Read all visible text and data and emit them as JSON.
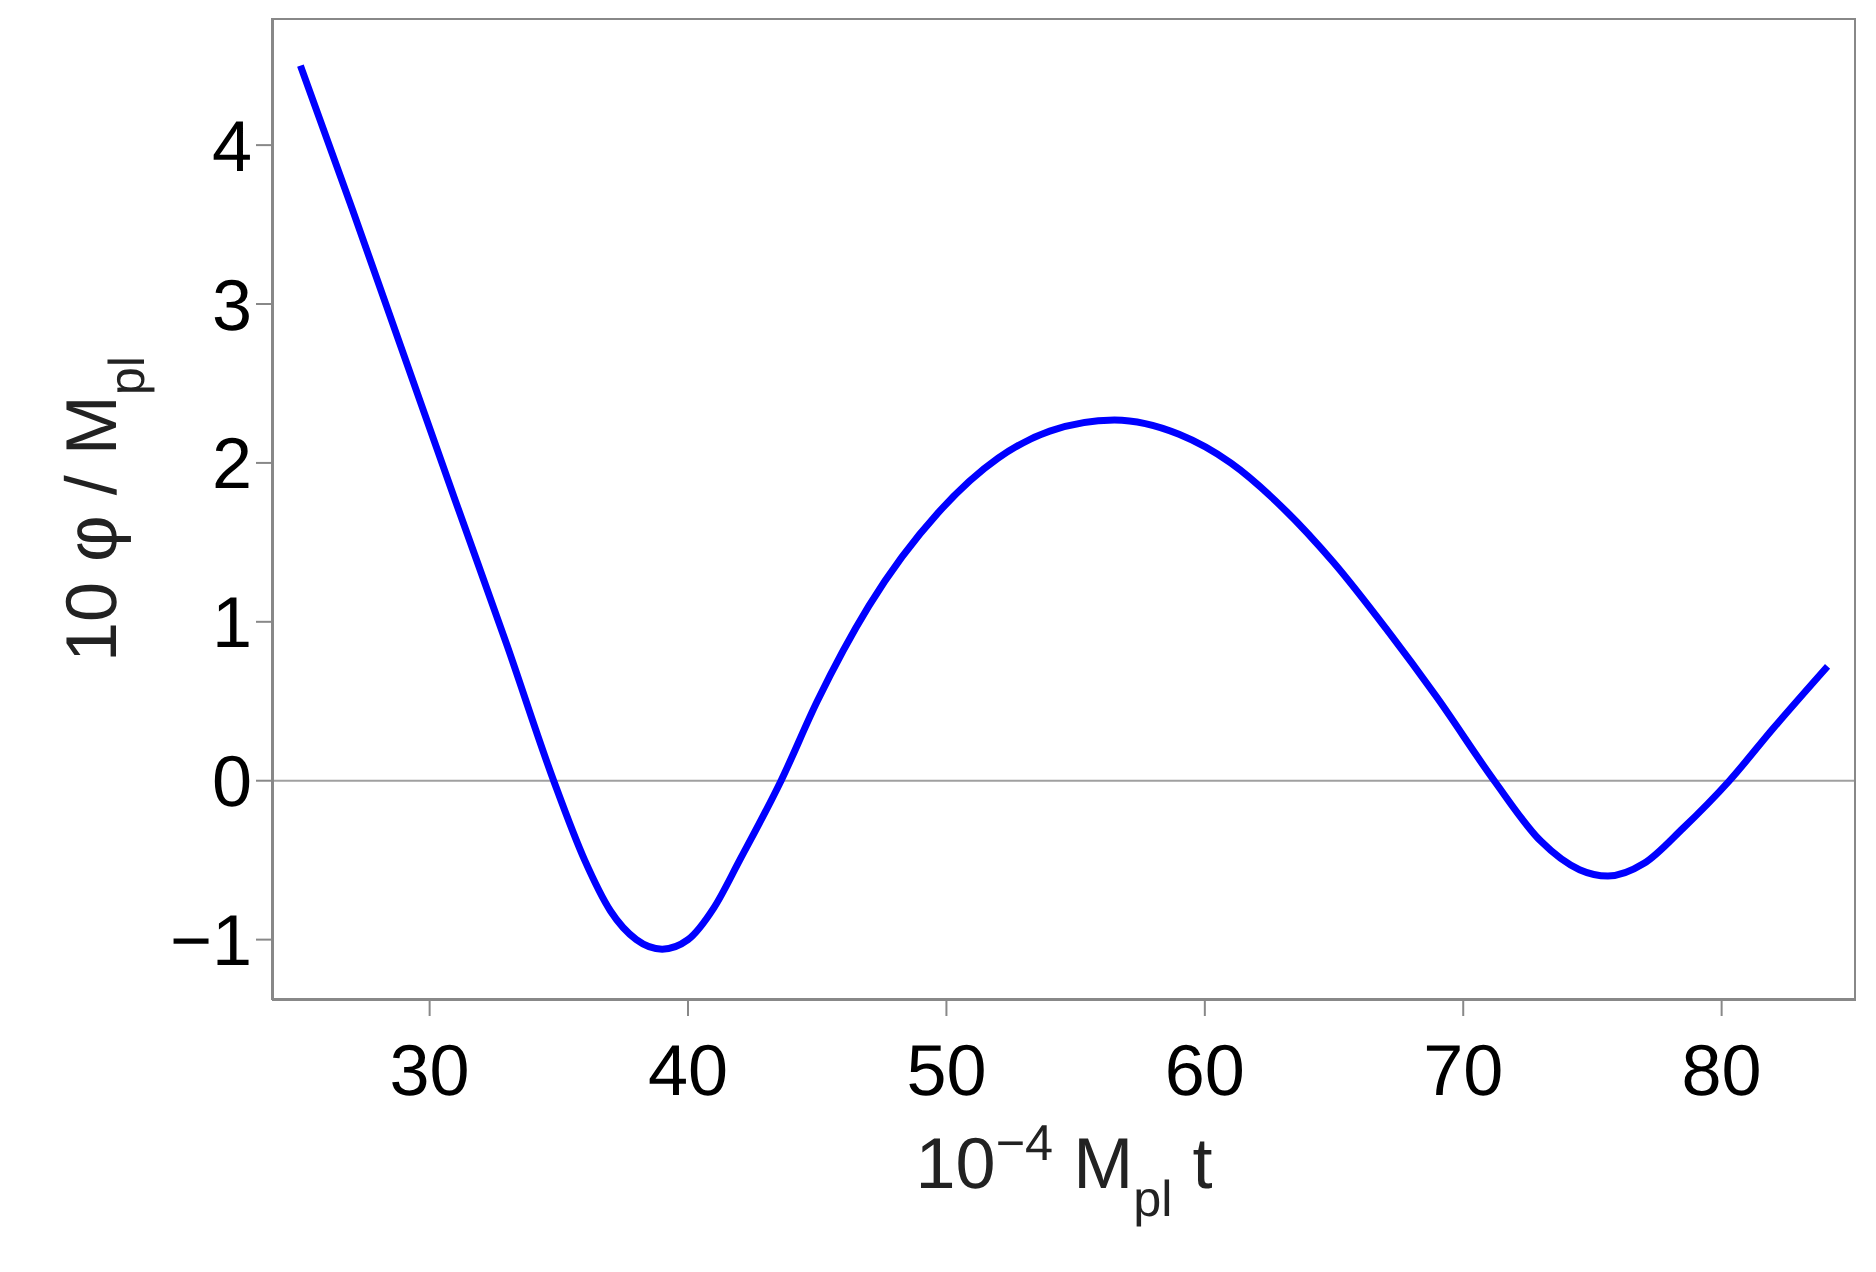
{
  "chart_data": {
    "type": "line",
    "xlabel": "10$^{−4}$ M$_{pl}$ t",
    "ylabel": "10 φ / M$_{pl}$",
    "x": [
      25,
      27,
      29,
      31,
      33,
      34.8,
      36,
      37,
      38,
      39,
      40,
      41,
      42,
      43.6,
      45,
      47,
      49.7,
      52,
      54,
      56.5,
      59,
      61,
      63,
      65,
      67,
      69,
      71.2,
      73,
      74.5,
      75.6,
      77,
      78.5,
      80.3,
      82,
      84.1
    ],
    "series": [
      {
        "color": "#0000ff",
        "values": [
          4.5,
          3.6,
          2.68,
          1.76,
          0.85,
          0,
          -0.5,
          -0.82,
          -1.0,
          -1.06,
          -1.0,
          -0.8,
          -0.5,
          0,
          0.5,
          1.1,
          1.69,
          2.03,
          2.2,
          2.27,
          2.18,
          2.0,
          1.72,
          1.37,
          0.96,
          0.52,
          0,
          -0.38,
          -0.56,
          -0.6,
          -0.52,
          -0.3,
          0,
          0.33,
          0.72
        ]
      }
    ],
    "xlim": [
      23.9,
      85.2
    ],
    "xticks": [
      30,
      40,
      50,
      60,
      70,
      80
    ],
    "ylim": [
      -1.38,
      4.8
    ],
    "yticks": [
      -1,
      0,
      1,
      2,
      3,
      4
    ],
    "ref_lines": [
      {
        "axis": "y",
        "value": 0,
        "color": "#a0a0a0"
      }
    ],
    "grid": false,
    "legend": false,
    "marker": "none",
    "line_style": "solid"
  }
}
